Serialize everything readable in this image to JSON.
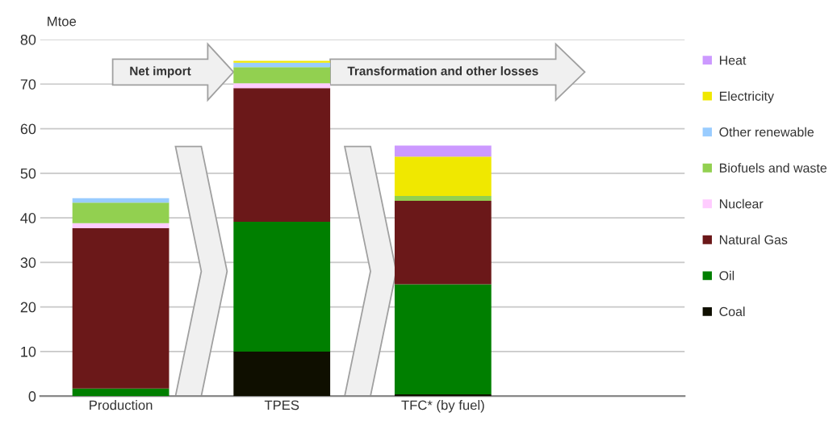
{
  "chart_data": {
    "type": "bar",
    "stacked": true,
    "ylabel": "Mtoe",
    "categories": [
      "Production",
      "TPES",
      "TFC* (by fuel)"
    ],
    "series": [
      {
        "name": "Coal",
        "color": "#0f0f00",
        "values": [
          null,
          10.0,
          0.4
        ]
      },
      {
        "name": "Oil",
        "color": "#007f00",
        "values": [
          1.7,
          29.1,
          24.7
        ]
      },
      {
        "name": "Natural Gas",
        "color": "#6b1819",
        "values": [
          36.0,
          30.0,
          18.7
        ]
      },
      {
        "name": "Nuclear",
        "color": "#ffccff",
        "values": [
          1.1,
          1.1,
          null
        ]
      },
      {
        "name": "Biofuels and waste",
        "color": "#92d050",
        "values": [
          4.6,
          3.6,
          1.1
        ]
      },
      {
        "name": "Other renewable",
        "color": "#99ccff",
        "values": [
          1.0,
          1.0,
          null
        ]
      },
      {
        "name": "Electricity",
        "color": "#f0e800",
        "values": [
          null,
          0.4,
          8.8
        ]
      },
      {
        "name": "Heat",
        "color": "#cc99ff",
        "values": [
          null,
          null,
          2.5
        ]
      }
    ],
    "ylim": [
      0,
      80
    ],
    "yticks": [
      0,
      10,
      20,
      30,
      40,
      50,
      60,
      70,
      80
    ],
    "grid": "y",
    "legend": "right",
    "annotations": [
      "Net import",
      "Transformation and other losses"
    ]
  }
}
